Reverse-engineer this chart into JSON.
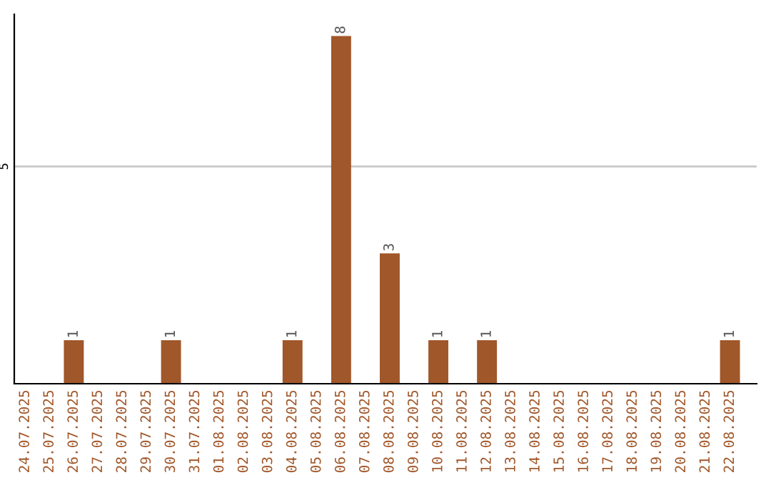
{
  "chart_data": {
    "type": "bar",
    "categories": [
      "24.07.2025",
      "25.07.2025",
      "26.07.2025",
      "27.07.2025",
      "28.07.2025",
      "29.07.2025",
      "30.07.2025",
      "31.07.2025",
      "01.08.2025",
      "02.08.2025",
      "03.08.2025",
      "04.08.2025",
      "05.08.2025",
      "06.08.2025",
      "07.08.2025",
      "08.08.2025",
      "09.08.2025",
      "10.08.2025",
      "11.08.2025",
      "12.08.2025",
      "13.08.2025",
      "14.08.2025",
      "15.08.2025",
      "16.08.2025",
      "17.08.2025",
      "18.08.2025",
      "19.08.2025",
      "20.08.2025",
      "21.08.2025",
      "22.08.2025"
    ],
    "values": [
      0,
      0,
      1,
      0,
      0,
      0,
      1,
      0,
      0,
      0,
      0,
      1,
      0,
      8,
      0,
      3,
      0,
      1,
      0,
      1,
      0,
      0,
      0,
      0,
      0,
      0,
      0,
      0,
      0,
      1
    ],
    "value_labels": [
      null,
      null,
      "1",
      null,
      null,
      null,
      "1",
      null,
      null,
      null,
      null,
      "1",
      null,
      "8",
      null,
      "3",
      null,
      "1",
      null,
      "1",
      null,
      null,
      null,
      null,
      null,
      null,
      null,
      null,
      null,
      "1"
    ],
    "color": "#a0572a",
    "ylim": [
      0,
      8.5
    ],
    "yticks": [
      5
    ],
    "grid": "y"
  }
}
